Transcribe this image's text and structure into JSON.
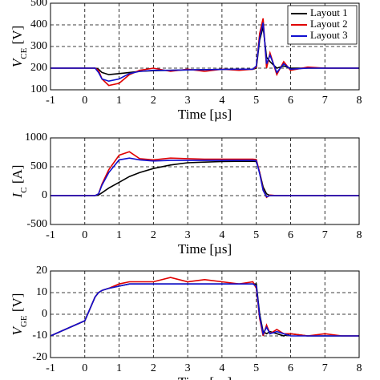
{
  "chart_data": [
    {
      "type": "line",
      "xlabel": "Time [µs]",
      "ylabel": [
        "V",
        "CE",
        " [V]"
      ],
      "xlim": [
        -1,
        8
      ],
      "ylim": [
        100,
        500
      ],
      "xticks": [
        -1,
        0,
        1,
        2,
        3,
        4,
        5,
        6,
        7,
        8
      ],
      "yticks": [
        100,
        200,
        300,
        400,
        500
      ],
      "grid": true,
      "legend": "upper right",
      "x": [
        -1,
        0,
        0.3,
        0.4,
        0.5,
        0.7,
        1.0,
        1.3,
        1.6,
        2.0,
        2.5,
        3,
        3.5,
        4,
        4.5,
        4.9,
        5.0,
        5.1,
        5.2,
        5.3,
        5.4,
        5.6,
        5.8,
        6,
        6.5,
        7,
        7.5,
        8
      ],
      "series": [
        {
          "name": "Layout 1",
          "color": "#000000",
          "values": [
            200,
            200,
            200,
            195,
            180,
            170,
            175,
            180,
            185,
            188,
            190,
            192,
            193,
            194,
            195,
            195,
            200,
            330,
            390,
            250,
            230,
            200,
            210,
            200,
            200,
            200,
            200,
            200
          ]
        },
        {
          "name": "Layout 2",
          "color": "#e00000",
          "values": [
            200,
            200,
            200,
            190,
            150,
            120,
            130,
            170,
            190,
            200,
            185,
            195,
            185,
            195,
            190,
            195,
            205,
            360,
            430,
            200,
            270,
            170,
            230,
            190,
            205,
            200,
            200,
            200
          ]
        },
        {
          "name": "Layout 3",
          "color": "#1010d0",
          "values": [
            200,
            200,
            200,
            180,
            150,
            140,
            150,
            175,
            185,
            190,
            190,
            192,
            193,
            194,
            195,
            195,
            210,
            340,
            410,
            220,
            260,
            180,
            220,
            195,
            200,
            200,
            200,
            200
          ]
        }
      ]
    },
    {
      "type": "line",
      "xlabel": "Time [µs]",
      "ylabel": [
        "I",
        "C",
        " [A]"
      ],
      "xlim": [
        -1,
        8
      ],
      "ylim": [
        -500,
        1000
      ],
      "xticks": [
        -1,
        0,
        1,
        2,
        3,
        4,
        5,
        6,
        7,
        8
      ],
      "yticks": [
        -500,
        0,
        500,
        1000
      ],
      "grid": true,
      "x": [
        -1,
        0,
        0.3,
        0.4,
        0.5,
        0.7,
        1.0,
        1.3,
        1.6,
        2.0,
        2.5,
        3,
        3.5,
        4,
        4.5,
        4.9,
        5.0,
        5.1,
        5.2,
        5.3,
        5.4,
        5.6,
        5.8,
        6,
        6.5,
        7,
        7.5,
        8
      ],
      "series": [
        {
          "color": "#000000",
          "values": [
            0,
            0,
            0,
            10,
            50,
            130,
            230,
            330,
            400,
            470,
            530,
            570,
            580,
            590,
            595,
            595,
            590,
            400,
            150,
            30,
            0,
            0,
            0,
            0,
            0,
            0,
            0,
            0
          ]
        },
        {
          "color": "#e00000",
          "values": [
            0,
            0,
            0,
            30,
            200,
            450,
            700,
            760,
            640,
            620,
            650,
            640,
            630,
            630,
            630,
            630,
            625,
            400,
            100,
            -30,
            10,
            0,
            0,
            0,
            0,
            0,
            0,
            0
          ]
        },
        {
          "color": "#1010d0",
          "values": [
            0,
            0,
            0,
            30,
            180,
            400,
            620,
            650,
            620,
            600,
            610,
            610,
            610,
            610,
            610,
            610,
            605,
            380,
            90,
            -20,
            0,
            0,
            0,
            0,
            0,
            0,
            0,
            0
          ]
        }
      ]
    },
    {
      "type": "line",
      "xlabel": "Time [µs]",
      "ylabel": [
        "V",
        "GE",
        " [V]"
      ],
      "xlim": [
        -1,
        8
      ],
      "ylim": [
        -20,
        20
      ],
      "xticks": [
        -1,
        0,
        1,
        2,
        3,
        4,
        5,
        6,
        7,
        8
      ],
      "yticks": [
        -20,
        -10,
        0,
        10,
        20
      ],
      "grid": true,
      "x": [
        -1,
        0,
        0.3,
        0.4,
        0.5,
        0.7,
        1.0,
        1.3,
        1.6,
        2.0,
        2.5,
        3,
        3.5,
        4,
        4.5,
        4.9,
        5.0,
        5.1,
        5.2,
        5.3,
        5.4,
        5.6,
        5.8,
        6,
        6.5,
        7,
        7.5,
        8
      ],
      "series": [
        {
          "color": "#000000",
          "values": [
            -10,
            -3,
            8,
            10,
            11,
            12,
            13,
            14,
            14,
            14,
            14,
            14,
            14,
            14,
            14,
            14,
            14,
            0,
            -8,
            -9,
            -8,
            -9,
            -10,
            -9,
            -10,
            -10,
            -10,
            -10
          ]
        },
        {
          "color": "#e00000",
          "values": [
            -10,
            -3,
            8,
            10,
            11,
            12,
            14,
            15,
            15,
            15,
            17,
            15,
            16,
            15,
            14,
            15,
            12,
            -2,
            -10,
            -5,
            -9,
            -7,
            -9,
            -9,
            -10,
            -9,
            -10,
            -10
          ]
        },
        {
          "color": "#1010d0",
          "values": [
            -10,
            -3,
            8,
            10,
            11,
            12,
            13,
            14,
            14,
            14,
            14,
            14,
            14,
            14,
            14,
            14,
            13,
            -1,
            -9,
            -6,
            -9,
            -8,
            -9,
            -10,
            -10,
            -10,
            -10,
            -10
          ]
        }
      ]
    }
  ]
}
